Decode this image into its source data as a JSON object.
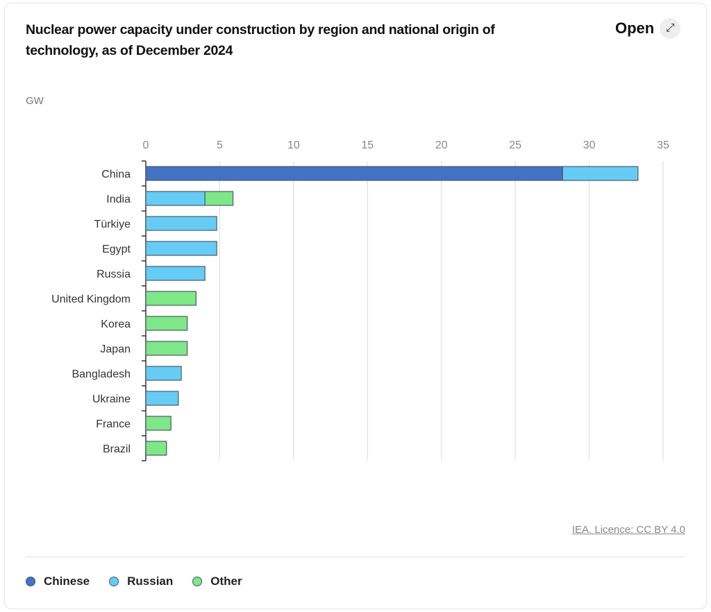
{
  "header": {
    "title": "Nuclear power capacity under construction by region and national origin of technology, as of December 2024",
    "open_label": "Open",
    "open_icon": "expand-arrow-icon"
  },
  "source": "IEA. Licence: CC BY 4.0",
  "chart_data": {
    "type": "bar",
    "orientation": "horizontal",
    "stacked": true,
    "title": "Nuclear power capacity under construction by region and national origin of technology, as of December 2024",
    "xlabel": "",
    "ylabel": "",
    "unit": "GW",
    "xlim": [
      0,
      35
    ],
    "xticks": [
      "0",
      "5",
      "10",
      "15",
      "20",
      "25",
      "30",
      "35"
    ],
    "grid": true,
    "legend_position": "bottom-left",
    "categories": [
      "China",
      "India",
      "Türkiye",
      "Egypt",
      "Russia",
      "United Kingdom",
      "Korea",
      "Japan",
      "Bangladesh",
      "Ukraine",
      "France",
      "Brazil"
    ],
    "series": [
      {
        "name": "Chinese",
        "color": "#4472c4",
        "values": [
          28.2,
          0,
          0,
          0,
          0,
          0,
          0,
          0,
          0,
          0,
          0,
          0
        ]
      },
      {
        "name": "Russian",
        "color": "#66ccf5",
        "values": [
          5.1,
          4.0,
          4.8,
          4.8,
          4.0,
          0,
          0,
          0,
          2.4,
          2.2,
          0,
          0
        ]
      },
      {
        "name": "Other",
        "color": "#7ee787",
        "values": [
          0,
          1.9,
          0,
          0,
          0,
          3.4,
          2.8,
          2.8,
          0,
          0,
          1.7,
          1.4
        ]
      }
    ]
  }
}
